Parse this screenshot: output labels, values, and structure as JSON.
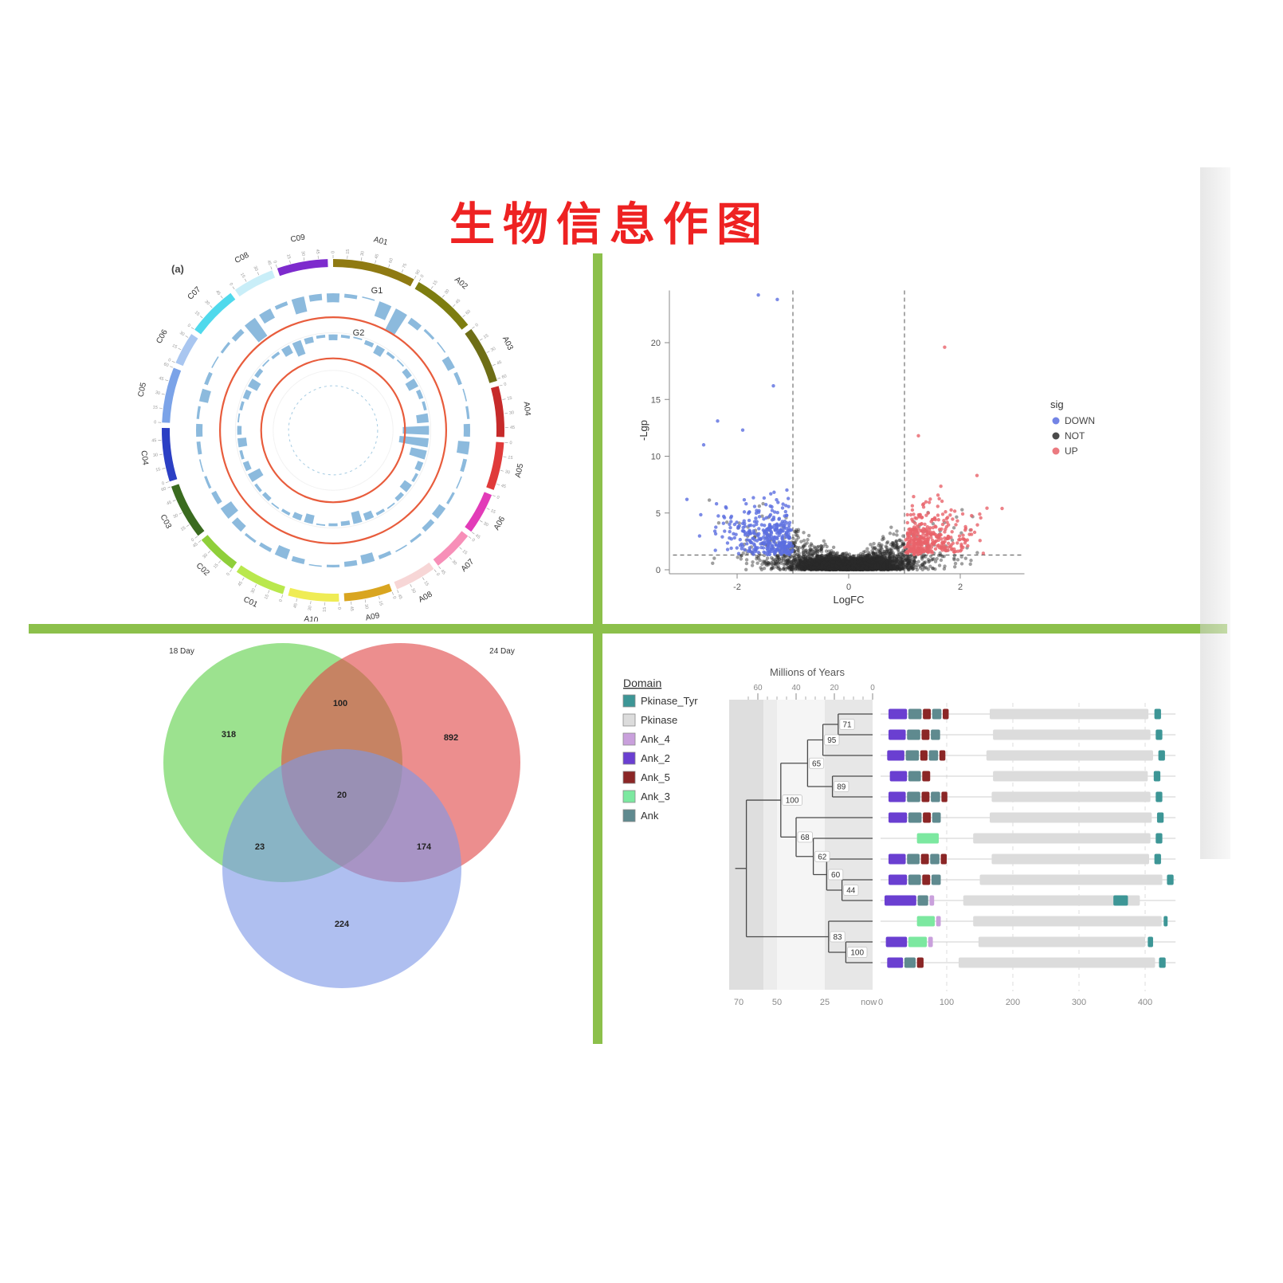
{
  "title": "生物信息作图",
  "styles": {
    "title_color": "#ee2222",
    "divider_color": "#8cc04b"
  },
  "chart_data": [
    {
      "id": "circos",
      "type": "other",
      "panel_label": "(a)",
      "track_labels": [
        "G1",
        "G2"
      ],
      "tick_step": 15,
      "ring_color": "#e85c3c",
      "bar_color": "#7fb2d9",
      "segments": [
        {
          "name": "A01",
          "color": "#8f7a12",
          "len": 90
        },
        {
          "name": "A02",
          "color": "#7d7d10",
          "len": 70
        },
        {
          "name": "A03",
          "color": "#6e6e16",
          "len": 62
        },
        {
          "name": "A04",
          "color": "#c62a2a",
          "len": 55
        },
        {
          "name": "A05",
          "color": "#e03a3a",
          "len": 52
        },
        {
          "name": "A06",
          "color": "#e23bb8",
          "len": 45
        },
        {
          "name": "A07",
          "color": "#f78fb8",
          "len": 45
        },
        {
          "name": "A08",
          "color": "#f7d6d6",
          "len": 45
        },
        {
          "name": "A09",
          "color": "#d9a520",
          "len": 52
        },
        {
          "name": "A10",
          "color": "#efec55",
          "len": 55
        },
        {
          "name": "C01",
          "color": "#b9e84d",
          "len": 55
        },
        {
          "name": "C02",
          "color": "#8fcf3a",
          "len": 45
        },
        {
          "name": "C03",
          "color": "#3a6b1f",
          "len": 60
        },
        {
          "name": "C04",
          "color": "#2b3fc4",
          "len": 58
        },
        {
          "name": "C05",
          "color": "#7ba3e8",
          "len": 60
        },
        {
          "name": "C06",
          "color": "#a9c6f0",
          "len": 35
        },
        {
          "name": "C07",
          "color": "#4fd9ec",
          "len": 55
        },
        {
          "name": "C08",
          "color": "#c9eef8",
          "len": 45
        },
        {
          "name": "C09",
          "color": "#7d2bcd",
          "len": 55
        }
      ],
      "g1_bars": [
        0.35,
        0.15,
        0.05,
        0.6,
        0.9,
        0.25,
        0.1,
        0.05,
        0.3,
        0.15,
        0.05,
        0.1,
        0.25,
        0.45,
        0.15,
        0.05,
        0.1,
        0.3,
        0.2,
        0.1,
        0.05,
        0.15,
        0.35,
        0.2,
        0.1,
        0.05,
        0.2,
        0.4,
        0.15,
        0.1,
        0.3,
        0.5,
        0.2,
        0.1,
        0.05,
        0.15,
        0.25,
        0.1,
        0.35,
        0.15,
        0.05,
        0.1,
        0.2,
        0.85,
        0.4,
        0.15,
        0.6,
        0.25
      ],
      "g2_bars": [
        0.2,
        0.1,
        0.05,
        0.15,
        0.3,
        0.1,
        0.05,
        0.2,
        0.35,
        0.15,
        0.1,
        0.4,
        0.9,
        1,
        0.55,
        0.2,
        0.1,
        0.3,
        0.15,
        0.05,
        0.1,
        0.25,
        0.4,
        0.15,
        0.1,
        0.05,
        0.3,
        0.2,
        0.1,
        0.05,
        0.15,
        0.1,
        0.45,
        0.2,
        0.1,
        0.3,
        0.15,
        0.05,
        0.1,
        0.2,
        0.35,
        0.15,
        0.05,
        0.1,
        0.3,
        0.5,
        0.2,
        0.1
      ]
    },
    {
      "id": "volcano",
      "type": "scatter",
      "xlabel": "LogFC",
      "ylabel": "-Lgp",
      "x_ticks": [
        -2,
        0,
        2
      ],
      "y_ticks": [
        0,
        5,
        10,
        15,
        20
      ],
      "xlim": [
        -3.2,
        3.2
      ],
      "ylim": [
        -0.5,
        24.8
      ],
      "vlines": [
        -1,
        1
      ],
      "hline": 1.3,
      "legend": {
        "title": "sig",
        "items": [
          {
            "label": "DOWN",
            "color": "#5b6ee0"
          },
          {
            "label": "NOT",
            "color": "#2b2b2b"
          },
          {
            "label": "UP",
            "color": "#e8636a"
          }
        ]
      },
      "n_core": 2600,
      "n_funnel": 1700,
      "n_down": 260,
      "n_up": 300,
      "seed": 42,
      "outliers": [
        {
          "x": -1.62,
          "y": 24.2,
          "sig": "DOWN"
        },
        {
          "x": -1.28,
          "y": 23.8,
          "sig": "DOWN"
        },
        {
          "x": -1.35,
          "y": 16.2,
          "sig": "DOWN"
        },
        {
          "x": -2.35,
          "y": 13.1,
          "sig": "DOWN"
        },
        {
          "x": -1.9,
          "y": 12.3,
          "sig": "DOWN"
        },
        {
          "x": -2.6,
          "y": 11.0,
          "sig": "DOWN"
        },
        {
          "x": -2.9,
          "y": 6.2,
          "sig": "DOWN"
        },
        {
          "x": 1.72,
          "y": 19.6,
          "sig": "UP"
        },
        {
          "x": 1.25,
          "y": 11.8,
          "sig": "UP"
        },
        {
          "x": 2.3,
          "y": 8.3,
          "sig": "UP"
        },
        {
          "x": 2.75,
          "y": 5.4,
          "sig": "UP"
        }
      ]
    },
    {
      "id": "venn",
      "type": "venn",
      "sets": [
        {
          "label": "18 Day",
          "color": "#5fd14a",
          "only": 318
        },
        {
          "label": "24 Day",
          "color": "#e04848",
          "only": 892
        },
        {
          "label": "",
          "color": "#7e98e6",
          "only": 224
        }
      ],
      "overlaps": {
        "s12": 100,
        "s13": 23,
        "s23": 174,
        "s123": 20
      }
    },
    {
      "id": "phylo_domains",
      "type": "other",
      "legend_title": "Domain",
      "domains": [
        {
          "name": "Pkinase_Tyr",
          "color": "#3d9696"
        },
        {
          "name": "Pkinase",
          "color": "#dcdcdc"
        },
        {
          "name": "Ank_4",
          "color": "#c9a0dc"
        },
        {
          "name": "Ank_2",
          "color": "#6a3fd1"
        },
        {
          "name": "Ank_5",
          "color": "#8b2626"
        },
        {
          "name": "Ank_3",
          "color": "#7ce8a0"
        },
        {
          "name": "Ank",
          "color": "#5f8a8f"
        }
      ],
      "top_axis": {
        "title": "Millions of Years",
        "major_ticks": [
          60,
          40,
          20,
          0
        ],
        "minor_ticks": [
          65,
          55,
          50,
          45,
          35,
          30,
          25,
          15,
          10,
          5
        ]
      },
      "bottom_axis_tree": [
        "70",
        "50",
        "25",
        "now"
      ],
      "bottom_axis_tree_values": [
        70,
        50,
        25,
        2
      ],
      "bottom_axis_domains": [
        0,
        100,
        200,
        300,
        400
      ],
      "tree": {
        "age": 66,
        "children": [
          {
            "age": 48,
            "label": "100",
            "children": [
              {
                "age": 34,
                "label": "65",
                "children": [
                  {
                    "age": 26,
                    "label": "95",
                    "children": [
                      {
                        "age": 18,
                        "label": "71",
                        "children": [
                          {
                            "tip": 0
                          },
                          {
                            "tip": 1
                          }
                        ]
                      },
                      {
                        "tip": 2
                      }
                    ]
                  },
                  {
                    "age": 21,
                    "label": "89",
                    "children": [
                      {
                        "tip": 3
                      },
                      {
                        "tip": 4
                      }
                    ]
                  }
                ]
              },
              {
                "age": 40,
                "label": "68",
                "children": [
                  {
                    "tip": 5
                  },
                  {
                    "age": 31,
                    "label": "62",
                    "children": [
                      {
                        "tip": 6
                      },
                      {
                        "age": 24,
                        "label": "60",
                        "children": [
                          {
                            "tip": 7
                          },
                          {
                            "age": 16,
                            "label": "44",
                            "children": [
                              {
                                "tip": 8
                              },
                              {
                                "tip": 9
                              }
                            ]
                          }
                        ]
                      }
                    ]
                  }
                ]
              }
            ]
          },
          {
            "age": 23,
            "label": "83",
            "children": [
              {
                "tip": 10
              },
              {
                "age": 14,
                "label": "100",
                "children": [
                  {
                    "tip": 11
                  },
                  {
                    "tip": 12
                  }
                ]
              }
            ]
          }
        ]
      },
      "rows": [
        {
          "segments": [
            {
              "d": "Ank_2",
              "s": 12,
              "e": 40
            },
            {
              "d": "Ank",
              "s": 42,
              "e": 62
            },
            {
              "d": "Ank_5",
              "s": 64,
              "e": 76
            },
            {
              "d": "Ank",
              "s": 78,
              "e": 92
            },
            {
              "d": "Ank_5",
              "s": 94,
              "e": 103
            },
            {
              "d": "Pkinase",
              "s": 165,
              "e": 405
            },
            {
              "d": "Pkinase_Tyr",
              "s": 414,
              "e": 424
            }
          ]
        },
        {
          "segments": [
            {
              "d": "Ank_2",
              "s": 12,
              "e": 38
            },
            {
              "d": "Ank",
              "s": 40,
              "e": 60
            },
            {
              "d": "Ank_5",
              "s": 62,
              "e": 74
            },
            {
              "d": "Ank",
              "s": 76,
              "e": 90
            },
            {
              "d": "Pkinase",
              "s": 170,
              "e": 408
            },
            {
              "d": "Pkinase_Tyr",
              "s": 416,
              "e": 426
            }
          ]
        },
        {
          "segments": [
            {
              "d": "Ank_2",
              "s": 10,
              "e": 36
            },
            {
              "d": "Ank",
              "s": 38,
              "e": 58
            },
            {
              "d": "Ank_5",
              "s": 60,
              "e": 71
            },
            {
              "d": "Ank",
              "s": 73,
              "e": 87
            },
            {
              "d": "Ank_5",
              "s": 89,
              "e": 98
            },
            {
              "d": "Pkinase",
              "s": 160,
              "e": 412
            },
            {
              "d": "Pkinase_Tyr",
              "s": 420,
              "e": 430
            }
          ]
        },
        {
          "segments": [
            {
              "d": "Ank_2",
              "s": 14,
              "e": 40
            },
            {
              "d": "Ank",
              "s": 42,
              "e": 61
            },
            {
              "d": "Ank_5",
              "s": 63,
              "e": 75
            },
            {
              "d": "Pkinase",
              "s": 170,
              "e": 404
            },
            {
              "d": "Pkinase_Tyr",
              "s": 413,
              "e": 423
            }
          ]
        },
        {
          "segments": [
            {
              "d": "Ank_2",
              "s": 12,
              "e": 38
            },
            {
              "d": "Ank",
              "s": 40,
              "e": 60
            },
            {
              "d": "Ank_5",
              "s": 62,
              "e": 74
            },
            {
              "d": "Ank",
              "s": 76,
              "e": 90
            },
            {
              "d": "Ank_5",
              "s": 92,
              "e": 101
            },
            {
              "d": "Pkinase",
              "s": 168,
              "e": 408
            },
            {
              "d": "Pkinase_Tyr",
              "s": 416,
              "e": 426
            }
          ]
        },
        {
          "segments": [
            {
              "d": "Ank_2",
              "s": 12,
              "e": 40
            },
            {
              "d": "Ank",
              "s": 42,
              "e": 62
            },
            {
              "d": "Ank_5",
              "s": 64,
              "e": 76
            },
            {
              "d": "Ank",
              "s": 78,
              "e": 91
            },
            {
              "d": "Pkinase",
              "s": 165,
              "e": 410
            },
            {
              "d": "Pkinase_Tyr",
              "s": 418,
              "e": 428
            }
          ]
        },
        {
          "segments": [
            {
              "d": "Ank_3",
              "s": 55,
              "e": 88
            },
            {
              "d": "Pkinase",
              "s": 140,
              "e": 408
            },
            {
              "d": "Pkinase_Tyr",
              "s": 416,
              "e": 426
            }
          ]
        },
        {
          "segments": [
            {
              "d": "Ank_2",
              "s": 12,
              "e": 38
            },
            {
              "d": "Ank",
              "s": 40,
              "e": 59
            },
            {
              "d": "Ank_5",
              "s": 61,
              "e": 73
            },
            {
              "d": "Ank",
              "s": 75,
              "e": 89
            },
            {
              "d": "Ank_5",
              "s": 91,
              "e": 100
            },
            {
              "d": "Pkinase",
              "s": 168,
              "e": 406
            },
            {
              "d": "Pkinase_Tyr",
              "s": 414,
              "e": 424
            }
          ]
        },
        {
          "segments": [
            {
              "d": "Ank_2",
              "s": 12,
              "e": 40
            },
            {
              "d": "Ank",
              "s": 42,
              "e": 61
            },
            {
              "d": "Ank_5",
              "s": 63,
              "e": 75
            },
            {
              "d": "Ank",
              "s": 77,
              "e": 91
            },
            {
              "d": "Pkinase",
              "s": 150,
              "e": 426
            },
            {
              "d": "Pkinase_Tyr",
              "s": 433,
              "e": 443
            }
          ]
        },
        {
          "segments": [
            {
              "d": "Pkinase",
              "s": 125,
              "e": 392
            },
            {
              "d": "Ank_2",
              "s": 6,
              "e": 54
            },
            {
              "d": "Ank",
              "s": 56,
              "e": 72
            },
            {
              "d": "Ank_4",
              "s": 74,
              "e": 81
            },
            {
              "d": "Pkinase_Tyr",
              "s": 352,
              "e": 374
            }
          ]
        },
        {
          "segments": [
            {
              "d": "Ank_3",
              "s": 55,
              "e": 82
            },
            {
              "d": "Ank_4",
              "s": 84,
              "e": 91
            },
            {
              "d": "Pkinase",
              "s": 140,
              "e": 425
            },
            {
              "d": "Pkinase_Tyr",
              "s": 428,
              "e": 434
            }
          ]
        },
        {
          "segments": [
            {
              "d": "Ank_2",
              "s": 8,
              "e": 40
            },
            {
              "d": "Ank_3",
              "s": 42,
              "e": 70
            },
            {
              "d": "Ank_4",
              "s": 72,
              "e": 79
            },
            {
              "d": "Pkinase",
              "s": 148,
              "e": 400
            },
            {
              "d": "Pkinase_Tyr",
              "s": 404,
              "e": 412
            }
          ]
        },
        {
          "segments": [
            {
              "d": "Ank_2",
              "s": 10,
              "e": 34
            },
            {
              "d": "Ank",
              "s": 36,
              "e": 53
            },
            {
              "d": "Ank_5",
              "s": 55,
              "e": 65
            },
            {
              "d": "Pkinase",
              "s": 118,
              "e": 415
            },
            {
              "d": "Pkinase_Tyr",
              "s": 421,
              "e": 431
            }
          ]
        }
      ]
    }
  ]
}
